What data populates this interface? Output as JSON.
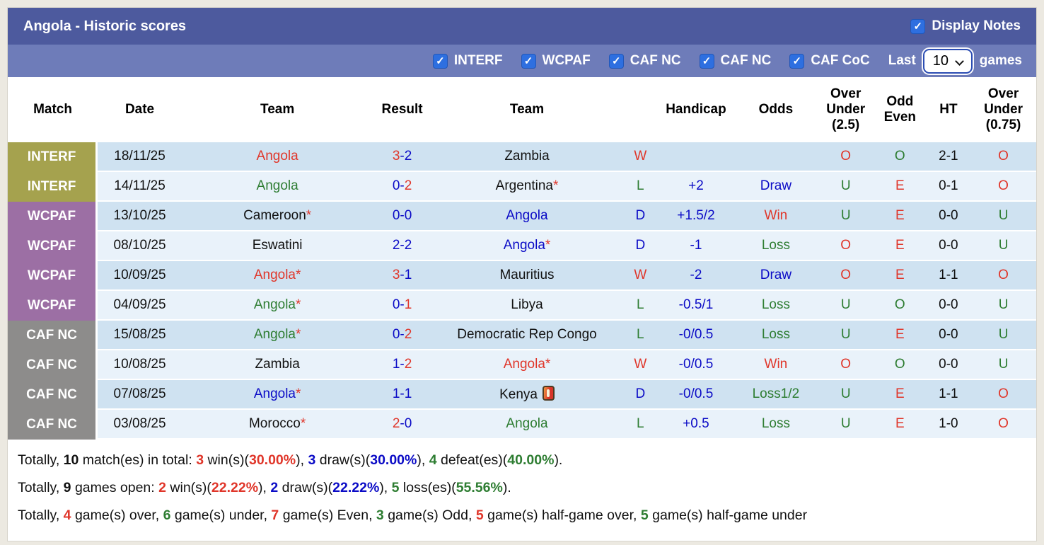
{
  "header": {
    "title": "Angola - Historic scores",
    "display_notes_label": "Display Notes",
    "display_notes_checked": true,
    "filters": [
      {
        "label": "INTERF",
        "checked": true
      },
      {
        "label": "WCPAF",
        "checked": true
      },
      {
        "label": "CAF NC",
        "checked": true
      },
      {
        "label": "CAF NC",
        "checked": true
      },
      {
        "label": "CAF CoC",
        "checked": true
      }
    ],
    "last_label": "Last",
    "games_count": "10",
    "games_label": "games"
  },
  "accent_colors": {
    "bar1": "#4d5a9e",
    "bar2": "#6e7cb9",
    "checkbox_blue": "#2e6fe0",
    "badge_olive": "#a5a24e",
    "badge_purple": "#9c6fa4",
    "badge_gray": "#8d8c8b",
    "row_dark": "#cfe2f1",
    "row_light": "#e9f2fa",
    "win_red": "#e0362a",
    "draw_blue": "#0b0bc6",
    "loss_green": "#2e7d32"
  },
  "table": {
    "columns": [
      "Match",
      "Date",
      "Team",
      "Result",
      "Team",
      "",
      "Handicap",
      "Odds",
      "Over\nUnder\n(2.5)",
      "Odd\nEven",
      "HT",
      "Over\nUnder\n(0.75)"
    ],
    "rows": [
      {
        "match": "INTERF",
        "group": "olive",
        "date": "18/11/25",
        "home": {
          "name": "Angola",
          "color": "r",
          "star": false,
          "card": false
        },
        "result": {
          "h": "3",
          "hc": "r",
          "a": "2",
          "ac": "bl"
        },
        "away": {
          "name": "Zambia",
          "color": "k",
          "star": false,
          "card": false
        },
        "wdl": {
          "t": "W",
          "c": "r"
        },
        "handicap": "",
        "odds": {
          "t": "",
          "c": "bl"
        },
        "ou25": {
          "t": "O",
          "c": "r"
        },
        "oddeven": {
          "t": "O",
          "c": "g"
        },
        "ht": "2-1",
        "ou075": {
          "t": "O",
          "c": "r"
        }
      },
      {
        "match": "INTERF",
        "group": "olive",
        "date": "14/11/25",
        "home": {
          "name": "Angola",
          "color": "g",
          "star": false,
          "card": false
        },
        "result": {
          "h": "0",
          "hc": "bl",
          "a": "2",
          "ac": "r"
        },
        "away": {
          "name": "Argentina",
          "color": "k",
          "star": true,
          "card": false
        },
        "wdl": {
          "t": "L",
          "c": "g"
        },
        "handicap": "+2",
        "odds": {
          "t": "Draw",
          "c": "bl"
        },
        "ou25": {
          "t": "U",
          "c": "g"
        },
        "oddeven": {
          "t": "E",
          "c": "r"
        },
        "ht": "0-1",
        "ou075": {
          "t": "O",
          "c": "r"
        }
      },
      {
        "match": "WCPAF",
        "group": "purple",
        "date": "13/10/25",
        "home": {
          "name": "Cameroon",
          "color": "k",
          "star": true,
          "card": false
        },
        "result": {
          "h": "0",
          "hc": "bl",
          "a": "0",
          "ac": "bl"
        },
        "away": {
          "name": "Angola",
          "color": "bl",
          "star": false,
          "card": false
        },
        "wdl": {
          "t": "D",
          "c": "bl"
        },
        "handicap": "+1.5/2",
        "odds": {
          "t": "Win",
          "c": "r"
        },
        "ou25": {
          "t": "U",
          "c": "g"
        },
        "oddeven": {
          "t": "E",
          "c": "r"
        },
        "ht": "0-0",
        "ou075": {
          "t": "U",
          "c": "g"
        }
      },
      {
        "match": "WCPAF",
        "group": "purple",
        "date": "08/10/25",
        "home": {
          "name": "Eswatini",
          "color": "k",
          "star": false,
          "card": false
        },
        "result": {
          "h": "2",
          "hc": "bl",
          "a": "2",
          "ac": "bl"
        },
        "away": {
          "name": "Angola",
          "color": "bl",
          "star": true,
          "card": false
        },
        "wdl": {
          "t": "D",
          "c": "bl"
        },
        "handicap": "-1",
        "odds": {
          "t": "Loss",
          "c": "g"
        },
        "ou25": {
          "t": "O",
          "c": "r"
        },
        "oddeven": {
          "t": "E",
          "c": "r"
        },
        "ht": "0-0",
        "ou075": {
          "t": "U",
          "c": "g"
        }
      },
      {
        "match": "WCPAF",
        "group": "purple",
        "date": "10/09/25",
        "home": {
          "name": "Angola",
          "color": "r",
          "star": true,
          "card": false
        },
        "result": {
          "h": "3",
          "hc": "r",
          "a": "1",
          "ac": "bl"
        },
        "away": {
          "name": "Mauritius",
          "color": "k",
          "star": false,
          "card": false
        },
        "wdl": {
          "t": "W",
          "c": "r"
        },
        "handicap": "-2",
        "odds": {
          "t": "Draw",
          "c": "bl"
        },
        "ou25": {
          "t": "O",
          "c": "r"
        },
        "oddeven": {
          "t": "E",
          "c": "r"
        },
        "ht": "1-1",
        "ou075": {
          "t": "O",
          "c": "r"
        }
      },
      {
        "match": "WCPAF",
        "group": "purple",
        "date": "04/09/25",
        "home": {
          "name": "Angola",
          "color": "g",
          "star": true,
          "card": false
        },
        "result": {
          "h": "0",
          "hc": "bl",
          "a": "1",
          "ac": "r"
        },
        "away": {
          "name": "Libya",
          "color": "k",
          "star": false,
          "card": false
        },
        "wdl": {
          "t": "L",
          "c": "g"
        },
        "handicap": "-0.5/1",
        "odds": {
          "t": "Loss",
          "c": "g"
        },
        "ou25": {
          "t": "U",
          "c": "g"
        },
        "oddeven": {
          "t": "O",
          "c": "g"
        },
        "ht": "0-0",
        "ou075": {
          "t": "U",
          "c": "g"
        }
      },
      {
        "match": "CAF NC",
        "group": "gray",
        "date": "15/08/25",
        "home": {
          "name": "Angola",
          "color": "g",
          "star": true,
          "card": false
        },
        "result": {
          "h": "0",
          "hc": "bl",
          "a": "2",
          "ac": "r"
        },
        "away": {
          "name": "Democratic Rep Congo",
          "color": "k",
          "star": false,
          "card": false
        },
        "wdl": {
          "t": "L",
          "c": "g"
        },
        "handicap": "-0/0.5",
        "odds": {
          "t": "Loss",
          "c": "g"
        },
        "ou25": {
          "t": "U",
          "c": "g"
        },
        "oddeven": {
          "t": "E",
          "c": "r"
        },
        "ht": "0-0",
        "ou075": {
          "t": "U",
          "c": "g"
        }
      },
      {
        "match": "CAF NC",
        "group": "gray",
        "date": "10/08/25",
        "home": {
          "name": "Zambia",
          "color": "k",
          "star": false,
          "card": false
        },
        "result": {
          "h": "1",
          "hc": "bl",
          "a": "2",
          "ac": "r"
        },
        "away": {
          "name": "Angola",
          "color": "r",
          "star": true,
          "card": false
        },
        "wdl": {
          "t": "W",
          "c": "r"
        },
        "handicap": "-0/0.5",
        "odds": {
          "t": "Win",
          "c": "r"
        },
        "ou25": {
          "t": "O",
          "c": "r"
        },
        "oddeven": {
          "t": "O",
          "c": "g"
        },
        "ht": "0-0",
        "ou075": {
          "t": "U",
          "c": "g"
        }
      },
      {
        "match": "CAF NC",
        "group": "gray",
        "date": "07/08/25",
        "home": {
          "name": "Angola",
          "color": "bl",
          "star": true,
          "card": false
        },
        "result": {
          "h": "1",
          "hc": "bl",
          "a": "1",
          "ac": "bl"
        },
        "away": {
          "name": "Kenya",
          "color": "k",
          "star": false,
          "card": true
        },
        "wdl": {
          "t": "D",
          "c": "bl"
        },
        "handicap": "-0/0.5",
        "odds": {
          "t": "Loss1/2",
          "c": "g"
        },
        "ou25": {
          "t": "U",
          "c": "g"
        },
        "oddeven": {
          "t": "E",
          "c": "r"
        },
        "ht": "1-1",
        "ou075": {
          "t": "O",
          "c": "r"
        }
      },
      {
        "match": "CAF NC",
        "group": "gray",
        "date": "03/08/25",
        "home": {
          "name": "Morocco",
          "color": "k",
          "star": true,
          "card": false
        },
        "result": {
          "h": "2",
          "hc": "r",
          "a": "0",
          "ac": "bl"
        },
        "away": {
          "name": "Angola",
          "color": "g",
          "star": false,
          "card": false
        },
        "wdl": {
          "t": "L",
          "c": "g"
        },
        "handicap": "+0.5",
        "odds": {
          "t": "Loss",
          "c": "g"
        },
        "ou25": {
          "t": "U",
          "c": "g"
        },
        "oddeven": {
          "t": "E",
          "c": "r"
        },
        "ht": "1-0",
        "ou075": {
          "t": "O",
          "c": "r"
        }
      }
    ]
  },
  "footer": {
    "lines": [
      [
        {
          "t": "Totally, ",
          "c": "k"
        },
        {
          "t": "10",
          "c": "k",
          "b": true
        },
        {
          "t": " match(es) in total: ",
          "c": "k"
        },
        {
          "t": "3",
          "c": "r",
          "b": true
        },
        {
          "t": " win(s)(",
          "c": "k"
        },
        {
          "t": "30.00%",
          "c": "r",
          "b": true
        },
        {
          "t": "), ",
          "c": "k"
        },
        {
          "t": "3",
          "c": "bl",
          "b": true
        },
        {
          "t": " draw(s)(",
          "c": "k"
        },
        {
          "t": "30.00%",
          "c": "bl",
          "b": true
        },
        {
          "t": "), ",
          "c": "k"
        },
        {
          "t": "4",
          "c": "g",
          "b": true
        },
        {
          "t": " defeat(es)(",
          "c": "k"
        },
        {
          "t": "40.00%",
          "c": "g",
          "b": true
        },
        {
          "t": ").",
          "c": "k"
        }
      ],
      [
        {
          "t": "Totally, ",
          "c": "k"
        },
        {
          "t": "9",
          "c": "k",
          "b": true
        },
        {
          "t": " games open: ",
          "c": "k"
        },
        {
          "t": "2",
          "c": "r",
          "b": true
        },
        {
          "t": " win(s)(",
          "c": "k"
        },
        {
          "t": "22.22%",
          "c": "r",
          "b": true
        },
        {
          "t": "), ",
          "c": "k"
        },
        {
          "t": "2",
          "c": "bl",
          "b": true
        },
        {
          "t": " draw(s)(",
          "c": "k"
        },
        {
          "t": "22.22%",
          "c": "bl",
          "b": true
        },
        {
          "t": "), ",
          "c": "k"
        },
        {
          "t": "5",
          "c": "g",
          "b": true
        },
        {
          "t": " loss(es)(",
          "c": "k"
        },
        {
          "t": "55.56%",
          "c": "g",
          "b": true
        },
        {
          "t": ").",
          "c": "k"
        }
      ],
      [
        {
          "t": "Totally, ",
          "c": "k"
        },
        {
          "t": "4",
          "c": "r",
          "b": true
        },
        {
          "t": " game(s) over, ",
          "c": "k"
        },
        {
          "t": "6",
          "c": "g",
          "b": true
        },
        {
          "t": " game(s) under, ",
          "c": "k"
        },
        {
          "t": "7",
          "c": "r",
          "b": true
        },
        {
          "t": " game(s) Even, ",
          "c": "k"
        },
        {
          "t": "3",
          "c": "g",
          "b": true
        },
        {
          "t": " game(s) Odd, ",
          "c": "k"
        },
        {
          "t": "5",
          "c": "r",
          "b": true
        },
        {
          "t": " game(s) half-game over, ",
          "c": "k"
        },
        {
          "t": "5",
          "c": "g",
          "b": true
        },
        {
          "t": " game(s) half-game under",
          "c": "k"
        }
      ]
    ]
  }
}
